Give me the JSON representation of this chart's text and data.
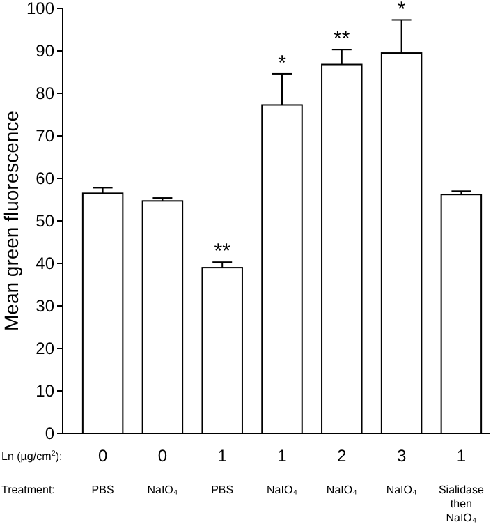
{
  "chart_data": {
    "type": "bar",
    "ylabel": "Mean green fluorescence",
    "categories": [
      "0\nPBS",
      "0\nNaIO₄",
      "1\nPBS",
      "1\nNaIO₄",
      "2\nNaIO₄",
      "3\nNaIO₄",
      "1\nSialidase\nthen\nNaIO₄"
    ],
    "values": [
      56.5,
      54.7,
      39,
      77.3,
      86.8,
      89.5,
      56.2
    ],
    "errors": [
      1.3,
      0.7,
      1.3,
      7.3,
      3.5,
      7.8,
      0.8
    ],
    "value_labels": [
      null,
      null,
      "**",
      "*",
      "**",
      "*",
      null
    ],
    "color": "#ffffff",
    "ylim": [
      0,
      100
    ],
    "yticks": [
      0,
      10,
      20,
      30,
      40,
      50,
      60,
      70,
      80,
      90,
      100
    ],
    "annotations": [
      "Ln (µg/cm$^{2}$):",
      "Treatment:"
    ],
    "grid": false
  }
}
